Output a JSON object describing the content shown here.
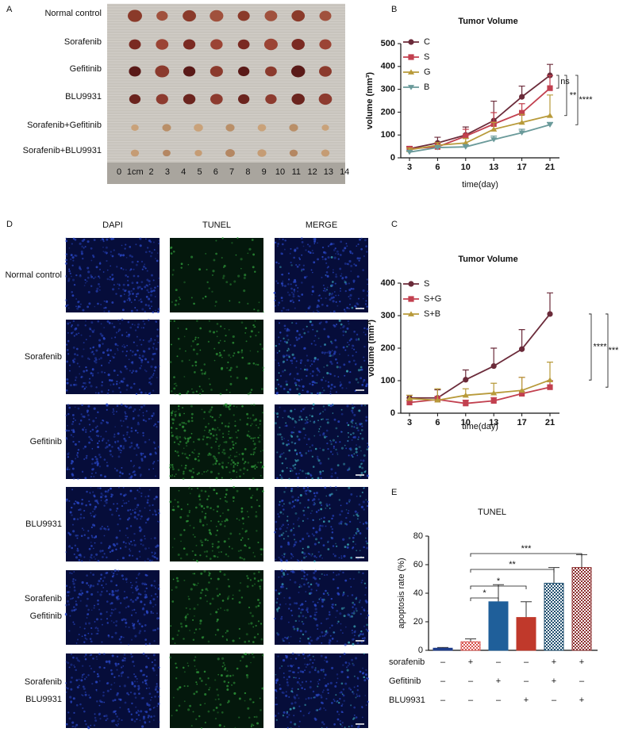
{
  "panel_a": {
    "letter": "A",
    "labels": [
      "Normal control",
      "Sorafenib",
      "Gefitinib",
      "BLU9931",
      "Sorafenib+Gefitinib",
      "Sorafenib+BLU9931"
    ],
    "ruler": [
      "0",
      "1cm",
      "2",
      "3",
      "4",
      "5",
      "6",
      "7",
      "8",
      "9",
      "10",
      "11",
      "12",
      "13",
      "14"
    ]
  },
  "panel_d": {
    "letter": "D",
    "columns": [
      "DAPI",
      "TUNEL",
      "MERGE"
    ],
    "rows": [
      [
        "Normal control"
      ],
      [
        "Sorafenib"
      ],
      [
        "Gefitinib"
      ],
      [
        "BLU9931"
      ],
      [
        "Sorafenib",
        "Gefitinib"
      ],
      [
        "Sorafenib",
        "BLU9931"
      ]
    ]
  },
  "chart_data": [
    {
      "type": "line",
      "letter": "B",
      "title": "Tumor Volume",
      "x_label": "time(day)",
      "y_label": "volume (mm³)",
      "categories": [
        "3",
        "6",
        "10",
        "13",
        "17",
        "21"
      ],
      "ylim": [
        0,
        500
      ],
      "yticks": [
        0,
        100,
        200,
        300,
        400,
        500
      ],
      "series": [
        {
          "name": "C",
          "color": "#6b2b3a",
          "marker": "circle",
          "values": [
            40,
            65,
            100,
            163,
            267,
            361
          ],
          "errors": [
            10,
            25,
            35,
            85,
            47,
            48
          ]
        },
        {
          "name": "S",
          "color": "#c2404f",
          "marker": "square",
          "values": [
            40,
            48,
            95,
            148,
            197,
            305
          ],
          "errors": [
            8,
            15,
            30,
            50,
            40,
            55
          ]
        },
        {
          "name": "G",
          "color": "#b89a3a",
          "marker": "triangle-up",
          "values": [
            35,
            55,
            65,
            125,
            155,
            185
          ],
          "errors": [
            8,
            12,
            20,
            30,
            35,
            90
          ]
        },
        {
          "name": "B",
          "color": "#6a9a9a",
          "marker": "triangle-down",
          "values": [
            25,
            45,
            48,
            80,
            110,
            145
          ],
          "errors": [
            5,
            8,
            10,
            15,
            15,
            10
          ]
        }
      ],
      "annotations": [
        "ns",
        "**",
        "****"
      ]
    },
    {
      "type": "line",
      "letter": "C",
      "title": "Tumor Volume",
      "x_label": "time(day)",
      "y_label": "volume (mm³)",
      "categories": [
        "3",
        "6",
        "10",
        "13",
        "17",
        "21"
      ],
      "ylim": [
        0,
        400
      ],
      "yticks": [
        0,
        100,
        200,
        300,
        400
      ],
      "series": [
        {
          "name": "S",
          "color": "#6b2b3a",
          "marker": "circle",
          "values": [
            47,
            47,
            103,
            145,
            197,
            305
          ],
          "errors": [
            8,
            25,
            30,
            55,
            60,
            65
          ]
        },
        {
          "name": "S+G",
          "color": "#c2404f",
          "marker": "square",
          "values": [
            33,
            42,
            30,
            38,
            60,
            80
          ],
          "errors": [
            6,
            10,
            10,
            10,
            50,
            20
          ]
        },
        {
          "name": "S+B",
          "color": "#b89a3a",
          "marker": "triangle-up",
          "values": [
            45,
            40,
            55,
            62,
            70,
            102
          ],
          "errors": [
            10,
            35,
            20,
            30,
            40,
            55
          ]
        }
      ],
      "annotations": [
        "****",
        "***"
      ]
    },
    {
      "type": "bar",
      "letter": "E",
      "title": "TUNEL",
      "y_label": "apoptosis rate (%)",
      "ylim": [
        0,
        80
      ],
      "yticks": [
        0,
        20,
        40,
        60,
        80
      ],
      "values": [
        1.5,
        6,
        34,
        23,
        47,
        58
      ],
      "errors": [
        0.5,
        2,
        12,
        11,
        11,
        9
      ],
      "colors": [
        "#1f3d8a",
        "#d9534f",
        "#1f5f9a",
        "#c0392b",
        "#1f4f6f",
        "#8b2d2d"
      ],
      "hatched": [
        false,
        true,
        false,
        false,
        true,
        true
      ],
      "annotations": [
        "*",
        "*",
        "**",
        "***"
      ],
      "treatments": [
        {
          "name": "sorafenib",
          "marks": [
            "–",
            "+",
            "–",
            "–",
            "+",
            "+"
          ]
        },
        {
          "name": "Gefitinib",
          "marks": [
            "–",
            "–",
            "+",
            "–",
            "+",
            "–"
          ]
        },
        {
          "name": "BLU9931",
          "marks": [
            "–",
            "–",
            "–",
            "+",
            "–",
            "+"
          ]
        }
      ]
    }
  ]
}
